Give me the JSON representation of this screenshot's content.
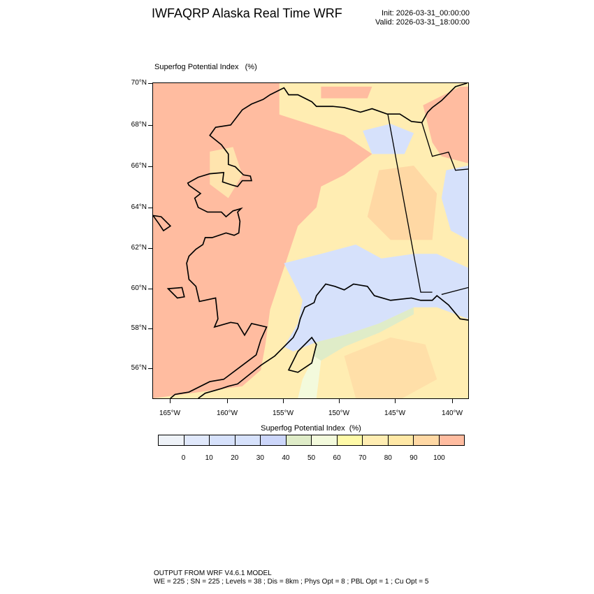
{
  "header": {
    "title": "IWFAQRP Alaska Real Time WRF",
    "init": "Init: 2026-03-31_00:00:00",
    "valid": "Valid: 2026-03-31_18:00:00"
  },
  "plot": {
    "label": "Superfog Potential Index   (%)",
    "lat_labels": [
      "70°N",
      "68°N",
      "66°N",
      "64°N",
      "62°N",
      "60°N",
      "58°N",
      "56°N"
    ],
    "lon_labels": [
      "165°W",
      "160°W",
      "155°W",
      "150°W",
      "145°W",
      "140°W"
    ],
    "land_line_color": "#000000"
  },
  "colorbar": {
    "title": "Superfog Potential Index  (%)",
    "labels": [
      "0",
      "10",
      "20",
      "30",
      "40",
      "50",
      "60",
      "70",
      "80",
      "90",
      "100"
    ],
    "colors": [
      "#eef2f8",
      "#e0e8fb",
      "#d6e1fb",
      "#d6e1fb",
      "#ccd6fa",
      "#dfecc8",
      "#f3fadc",
      "#fffaa8",
      "#ffedb2",
      "#ffe8a6",
      "#ffd8a4",
      "#ffbca0"
    ]
  },
  "footer": {
    "line1": "OUTPUT FROM WRF V4.6.1 MODEL",
    "line2": "WE = 225 ; SN = 225 ; Levels = 38 ; Dis = 8km ; Phys Opt = 8 ; PBL Opt = 1 ; Cu Opt = 5"
  }
}
